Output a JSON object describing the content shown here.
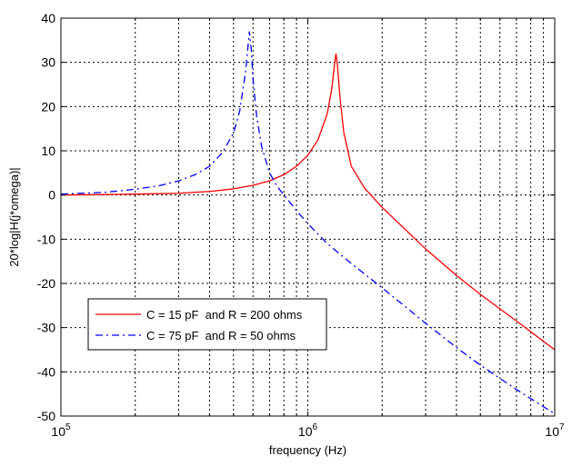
{
  "chart_data": {
    "type": "line",
    "xscale": "log",
    "xlim": [
      100000,
      10000000
    ],
    "ylim": [
      -50,
      40
    ],
    "xlabel": "frequency (Hz)",
    "ylabel": "20*log|H(j*omega)|",
    "grid": true,
    "legend_position": "lower-left",
    "x_ticks": [
      {
        "value": 100000,
        "base": "10",
        "exp": "5"
      },
      {
        "value": 1000000,
        "base": "10",
        "exp": "6"
      },
      {
        "value": 10000000,
        "base": "10",
        "exp": "7"
      }
    ],
    "y_ticks": [
      {
        "value": 40,
        "label": "40"
      },
      {
        "value": 30,
        "label": "30"
      },
      {
        "value": 20,
        "label": "20"
      },
      {
        "value": 10,
        "label": "10"
      },
      {
        "value": 0,
        "label": "0"
      },
      {
        "value": -10,
        "label": "-10"
      },
      {
        "value": -20,
        "label": "-20"
      },
      {
        "value": -30,
        "label": "-30"
      },
      {
        "value": -40,
        "label": "-40"
      },
      {
        "value": -50,
        "label": "-50"
      }
    ],
    "series": [
      {
        "name": "C = 15 pF  and R = 200 ohms",
        "color": "#ff0000",
        "style": "solid",
        "x": [
          100000,
          150000,
          200000,
          300000,
          400000,
          500000,
          600000,
          700000,
          800000,
          900000,
          1000000,
          1100000,
          1200000,
          1250000,
          1280000,
          1300000,
          1320000,
          1350000,
          1400000,
          1500000,
          1700000,
          2000000,
          3000000,
          4000000,
          5000000,
          7000000,
          10000000
        ],
        "y": [
          0,
          0.1,
          0.2,
          0.4,
          0.8,
          1.4,
          2.2,
          3.2,
          4.6,
          6.5,
          9,
          12.5,
          18.5,
          24,
          29,
          32,
          29,
          22,
          14,
          6.5,
          1.5,
          -2.8,
          -12.2,
          -18.2,
          -22.5,
          -28.5,
          -35
        ]
      },
      {
        "name": "C = 75 pF  and R = 50 ohms",
        "color": "#0000ff",
        "style": "dashdot",
        "x": [
          100000,
          150000,
          200000,
          250000,
          300000,
          350000,
          400000,
          450000,
          500000,
          530000,
          560000,
          580000,
          590000,
          600000,
          620000,
          650000,
          700000,
          750000,
          800000,
          900000,
          1000000,
          1200000,
          1500000,
          2000000,
          3000000,
          4000000,
          5000000,
          7000000,
          10000000
        ],
        "y": [
          0.2,
          0.6,
          1.3,
          2.1,
          3.2,
          4.6,
          6.5,
          9.5,
          14,
          19,
          28,
          37,
          33,
          26,
          18,
          11,
          5,
          2,
          0,
          -3.5,
          -6.5,
          -11,
          -15.5,
          -21,
          -29,
          -34.5,
          -38.5,
          -44,
          -49.5
        ]
      }
    ]
  }
}
